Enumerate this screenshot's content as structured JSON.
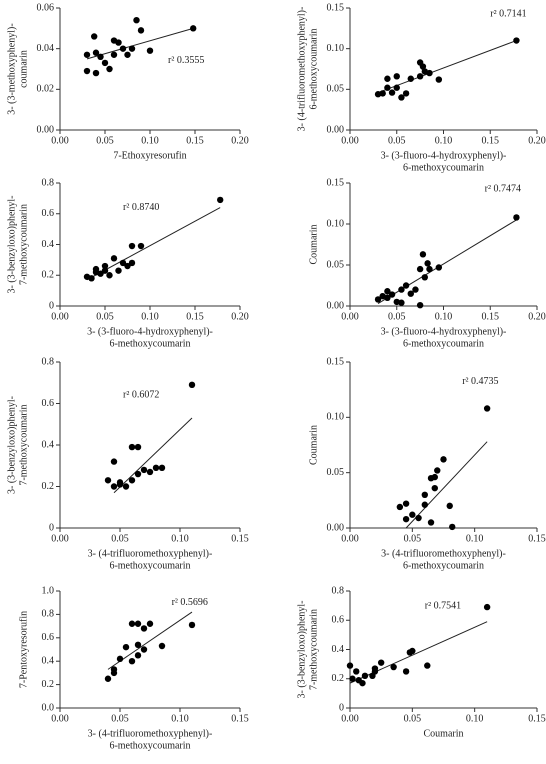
{
  "chart_data": [
    {
      "type": "scatter",
      "annotation": "r² 0.3555",
      "xlabel": [
        "7-Ethoxyresorufin"
      ],
      "ylabel": [
        "3- (3-methoxyphenyl)-",
        "coumarin"
      ],
      "xlim": [
        0,
        0.2
      ],
      "ylim": [
        0,
        0.06
      ],
      "xticks": [
        {
          "value": 0,
          "label": "0.00"
        },
        0.05,
        {
          "value": 0.1,
          "label": "0.10"
        },
        0.15,
        {
          "value": 0.2,
          "label": "0.20"
        }
      ],
      "yticks": [
        {
          "value": 0,
          "label": "0.00"
        },
        0.02,
        0.04,
        0.06
      ],
      "x": [
        0.03,
        0.03,
        0.038,
        0.04,
        0.04,
        0.045,
        0.05,
        0.055,
        0.06,
        0.06,
        0.065,
        0.07,
        0.075,
        0.08,
        0.085,
        0.09,
        0.1,
        0.148
      ],
      "y": [
        0.037,
        0.029,
        0.046,
        0.038,
        0.028,
        0.036,
        0.033,
        0.03,
        0.044,
        0.037,
        0.043,
        0.04,
        0.037,
        0.04,
        0.054,
        0.049,
        0.039,
        0.05
      ],
      "fit": {
        "x": [
          0.03,
          0.148
        ],
        "y": [
          0.035,
          0.05
        ]
      }
    },
    {
      "type": "scatter",
      "annotation": "r² 0.7141",
      "xlabel": [
        "3- (3-fluoro-4-hydroxyphenyl)-",
        "6-methoxycoumarin"
      ],
      "ylabel": [
        "3- (4-trifluoromethoxyphenyl)-",
        "6-methoxycoumarin"
      ],
      "xlim": [
        0,
        0.2
      ],
      "ylim": [
        0,
        0.15
      ],
      "xticks": [
        {
          "value": 0,
          "label": "0.00"
        },
        0.05,
        {
          "value": 0.1,
          "label": "0.10"
        },
        0.15,
        {
          "value": 0.2,
          "label": "0.20"
        }
      ],
      "yticks": [
        {
          "value": 0,
          "label": "0.00"
        },
        0.05,
        {
          "value": 0.1,
          "label": "0.10"
        },
        0.15
      ],
      "x": [
        0.03,
        0.035,
        0.04,
        0.04,
        0.045,
        0.05,
        0.05,
        0.055,
        0.06,
        0.065,
        0.075,
        0.075,
        0.078,
        0.08,
        0.085,
        0.095,
        0.178
      ],
      "y": [
        0.044,
        0.045,
        0.052,
        0.063,
        0.046,
        0.052,
        0.066,
        0.04,
        0.045,
        0.063,
        0.066,
        0.083,
        0.078,
        0.072,
        0.07,
        0.062,
        0.11
      ],
      "fit": {
        "x": [
          0.03,
          0.178
        ],
        "y": [
          0.046,
          0.11
        ]
      }
    },
    {
      "type": "scatter",
      "annotation": "r² 0.8740",
      "xlabel": [
        "3- (3-fluoro-4-hydroxyphenyl)-",
        "6-methoxycoumarin"
      ],
      "ylabel": [
        "3- (3-benzyloxo)phenyl-",
        "7-methoxycoumarin"
      ],
      "xlim": [
        0,
        0.2
      ],
      "ylim": [
        0,
        0.8
      ],
      "xticks": [
        {
          "value": 0,
          "label": "0.00"
        },
        0.05,
        {
          "value": 0.1,
          "label": "0.10"
        },
        0.15,
        {
          "value": 0.2,
          "label": "0.20"
        }
      ],
      "yticks": [
        0,
        0.2,
        0.4,
        0.6,
        0.8
      ],
      "x": [
        0.03,
        0.035,
        0.04,
        0.04,
        0.045,
        0.05,
        0.05,
        0.055,
        0.06,
        0.065,
        0.07,
        0.075,
        0.08,
        0.08,
        0.09,
        0.178
      ],
      "y": [
        0.19,
        0.18,
        0.24,
        0.22,
        0.21,
        0.26,
        0.23,
        0.2,
        0.31,
        0.23,
        0.28,
        0.26,
        0.39,
        0.28,
        0.39,
        0.69
      ],
      "fit": {
        "x": [
          0.03,
          0.178
        ],
        "y": [
          0.17,
          0.64
        ]
      }
    },
    {
      "type": "scatter",
      "annotation": "r² 0.7474",
      "xlabel": [
        "3- (3-fluoro-4-hydroxyphenyl)-",
        "6-methoxycoumarin"
      ],
      "ylabel": [
        "Coumarin"
      ],
      "xlim": [
        0,
        0.2
      ],
      "ylim": [
        0,
        0.15
      ],
      "xticks": [
        {
          "value": 0,
          "label": "0.00"
        },
        0.05,
        {
          "value": 0.1,
          "label": "0.10"
        },
        0.15,
        {
          "value": 0.2,
          "label": "0.20"
        }
      ],
      "yticks": [
        {
          "value": 0,
          "label": "0.00"
        },
        0.05,
        {
          "value": 0.1,
          "label": "0.10"
        },
        0.15
      ],
      "x": [
        0.03,
        0.035,
        0.04,
        0.04,
        0.045,
        0.05,
        0.055,
        0.055,
        0.06,
        0.065,
        0.07,
        0.075,
        0.075,
        0.078,
        0.08,
        0.083,
        0.085,
        0.095,
        0.178
      ],
      "y": [
        0.008,
        0.012,
        0.018,
        0.01,
        0.014,
        0.005,
        0.004,
        0.02,
        0.025,
        0.015,
        0.02,
        0.045,
        0.001,
        0.063,
        0.035,
        0.052,
        0.045,
        0.047,
        0.108
      ],
      "fit": {
        "x": [
          0.03,
          0.178
        ],
        "y": [
          0.003,
          0.105
        ]
      }
    },
    {
      "type": "scatter",
      "annotation": "r² 0.6072",
      "xlabel": [
        "3- (4-trifluoromethoxyphenyl)-",
        "6-methoxycoumarin"
      ],
      "ylabel": [
        "3- (3-benzyloxo)phenyl-",
        "7-methoxycoumarin"
      ],
      "xlim": [
        0,
        0.15
      ],
      "ylim": [
        0,
        0.8
      ],
      "xticks": [
        {
          "value": 0,
          "label": "0.00"
        },
        0.05,
        {
          "value": 0.1,
          "label": "0.10"
        },
        0.15
      ],
      "yticks": [
        0,
        0.2,
        0.4,
        0.6,
        0.8
      ],
      "x": [
        0.04,
        0.045,
        0.045,
        0.05,
        0.05,
        0.055,
        0.06,
        0.06,
        0.065,
        0.065,
        0.07,
        0.075,
        0.08,
        0.085,
        0.11
      ],
      "y": [
        0.23,
        0.2,
        0.32,
        0.21,
        0.22,
        0.2,
        0.23,
        0.39,
        0.26,
        0.39,
        0.28,
        0.27,
        0.29,
        0.29,
        0.69
      ],
      "fit": {
        "x": [
          0.045,
          0.11
        ],
        "y": [
          0.17,
          0.53
        ]
      }
    },
    {
      "type": "scatter",
      "annotation": "r² 0.4735",
      "xlabel": [
        "3- (4-trifluoromethoxyphenyl)-",
        "6-methoxycoumarin"
      ],
      "ylabel": [
        "Coumarin"
      ],
      "xlim": [
        0,
        0.15
      ],
      "ylim": [
        0,
        0.15
      ],
      "xticks": [
        {
          "value": 0,
          "label": "0.00"
        },
        0.05,
        {
          "value": 0.1,
          "label": "0.10"
        },
        0.15
      ],
      "yticks": [
        {
          "value": 0,
          "label": "0.00"
        },
        0.05,
        {
          "value": 0.1,
          "label": "0.10"
        },
        0.15
      ],
      "x": [
        0.04,
        0.045,
        0.045,
        0.05,
        0.055,
        0.06,
        0.06,
        0.065,
        0.068,
        0.068,
        0.07,
        0.075,
        0.08,
        0.082,
        0.065,
        0.11
      ],
      "y": [
        0.019,
        0.008,
        0.022,
        0.012,
        0.009,
        0.03,
        0.021,
        0.045,
        0.036,
        0.046,
        0.052,
        0.062,
        0.02,
        0.001,
        0.005,
        0.108
      ],
      "fit": {
        "x": [
          0.045,
          0.11
        ],
        "y": [
          0,
          0.078
        ]
      }
    },
    {
      "type": "scatter",
      "annotation": "r² 0.5696",
      "xlabel": [
        "3- (4-trifluoromethoxyphenyl)-",
        "6-methoxycoumarin"
      ],
      "ylabel": [
        "7-Pentoxyresorufin"
      ],
      "xlim": [
        0,
        0.15
      ],
      "ylim": [
        0,
        1
      ],
      "xticks": [
        {
          "value": 0,
          "label": "0.00"
        },
        0.05,
        {
          "value": 0.1,
          "label": "0.10"
        },
        0.15
      ],
      "yticks": [
        {
          "value": 0,
          "label": "0.0"
        },
        0.2,
        0.4,
        0.6,
        0.8,
        {
          "value": 1,
          "label": "1.0"
        }
      ],
      "x": [
        0.04,
        0.045,
        0.045,
        0.05,
        0.055,
        0.06,
        0.06,
        0.065,
        0.065,
        0.065,
        0.07,
        0.07,
        0.075,
        0.085,
        0.11
      ],
      "y": [
        0.25,
        0.33,
        0.3,
        0.42,
        0.52,
        0.72,
        0.4,
        0.72,
        0.45,
        0.54,
        0.5,
        0.68,
        0.72,
        0.53,
        0.71
      ],
      "fit": {
        "x": [
          0.04,
          0.11
        ],
        "y": [
          0.33,
          0.82
        ]
      }
    },
    {
      "type": "scatter",
      "annotation": "r² 0.7541",
      "xlabel": [
        "Coumarin"
      ],
      "ylabel": [
        "3- (3-benzyloxo)phenyl-",
        "7-methoxycoumarin"
      ],
      "xlim": [
        0,
        0.15
      ],
      "ylim": [
        0,
        0.8
      ],
      "xticks": [
        {
          "value": 0,
          "label": "0.00"
        },
        0.05,
        {
          "value": 0.1,
          "label": "0.10"
        },
        0.15
      ],
      "yticks": [
        0,
        0.2,
        0.4,
        0.6,
        0.8
      ],
      "x": [
        0,
        0.002,
        0.005,
        0.007,
        0.01,
        0.012,
        0.018,
        0.02,
        0.02,
        0.025,
        0.035,
        0.045,
        0.048,
        0.05,
        0.062,
        0.11
      ],
      "y": [
        0.29,
        0.2,
        0.25,
        0.19,
        0.17,
        0.22,
        0.22,
        0.25,
        0.27,
        0.31,
        0.28,
        0.25,
        0.38,
        0.39,
        0.29,
        0.69
      ],
      "fit": {
        "x": [
          0,
          0.11
        ],
        "y": [
          0.17,
          0.59
        ]
      }
    }
  ]
}
